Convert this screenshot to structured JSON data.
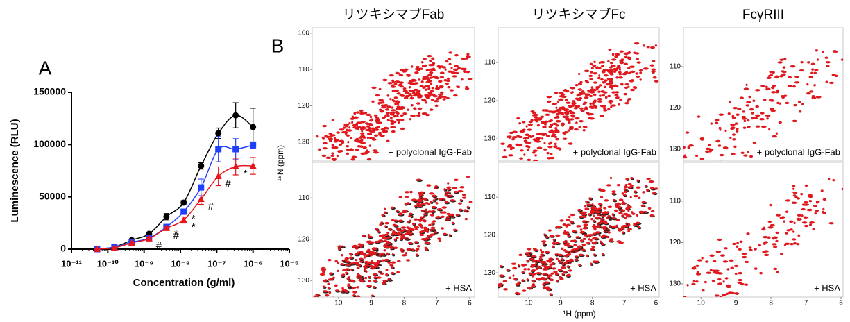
{
  "chart_data": [
    {
      "type": "scatter",
      "panel_label": "A",
      "xlabel": "Concentration (g/ml)",
      "ylabel": "Luminescence (RLU)",
      "xscale": "log",
      "xlim": [
        1e-11,
        1e-05
      ],
      "xticks": [
        {
          "value": 1e-11,
          "label": "10⁻¹¹"
        },
        {
          "value": 1e-10,
          "label": "10⁻¹⁰"
        },
        {
          "value": 1e-09,
          "label": "10⁻⁹"
        },
        {
          "value": 1e-08,
          "label": "10⁻⁸"
        },
        {
          "value": 1e-07,
          "label": "10⁻⁷"
        },
        {
          "value": 1e-06,
          "label": "10⁻⁶"
        },
        {
          "value": 1e-05,
          "label": "10⁻⁵"
        }
      ],
      "ylim": [
        0,
        150000
      ],
      "yticks": [
        0,
        50000,
        100000,
        150000
      ],
      "x": [
        5.08e-11,
        1.52e-10,
        4.57e-10,
        1.37e-09,
        4.12e-09,
        1.23e-08,
        3.7e-08,
        1.11e-07,
        3.33e-07,
        1e-06
      ],
      "series": [
        {
          "color": "#000000",
          "marker": "circle",
          "values": [
            0,
            2000,
            8600,
            14600,
            31000,
            44500,
            79600,
            110800,
            128000,
            116800
          ],
          "errors": [
            0,
            0,
            1000,
            1500,
            3000,
            2000,
            3000,
            5000,
            12000,
            18000
          ],
          "annotations": [
            null,
            null,
            null,
            null,
            null,
            null,
            null,
            null,
            null,
            null
          ]
        },
        {
          "color": "#1f3fff",
          "marker": "square",
          "values": [
            0,
            2000,
            6600,
            10600,
            21200,
            35800,
            59000,
            95600,
            95600,
            99600
          ],
          "errors": [
            0,
            0,
            1000,
            1000,
            2000,
            2000,
            8000,
            12000,
            10000,
            3000
          ],
          "annotations": [
            null,
            null,
            null,
            null,
            "*",
            "*",
            null,
            null,
            null,
            null
          ]
        },
        {
          "color": "#e8151b",
          "marker": "triangle",
          "values": [
            0,
            1300,
            6000,
            10000,
            20000,
            27900,
            47800,
            69700,
            79000,
            79600
          ],
          "errors": [
            0,
            0,
            1000,
            1000,
            2000,
            3000,
            5000,
            9000,
            8000,
            8000
          ],
          "annotations": [
            null,
            null,
            null,
            "#",
            "#",
            "*",
            "#",
            "#",
            "*",
            null
          ]
        }
      ]
    },
    {
      "type": "nmr",
      "panel_label": "B",
      "xlabel": "¹H (ppm)",
      "ylabel": "¹⁵N (ppm)",
      "columns": [
        {
          "title": "リツキシマブFab",
          "panels": [
            {
              "condition": "+ polyclonal IgG-Fab",
              "xlim": [
                10.8,
                5.85
              ],
              "ylim": [
                135.2,
                98.5
              ],
              "yticks": [
                100,
                110,
                120,
                130
              ]
            },
            {
              "condition": "+ HSA",
              "xlim": [
                10.8,
                5.85
              ],
              "ylim": [
                134,
                101.4
              ],
              "yticks": [
                110,
                120,
                130
              ],
              "xticks": [
                10,
                9,
                8,
                7,
                6
              ]
            }
          ]
        },
        {
          "title": "リツキシマブFc",
          "panels": [
            {
              "condition": "+ polyclonal IgG-Fab",
              "xlim": [
                10.96,
                5.9
              ],
              "ylim": [
                135.8,
                100.9
              ],
              "yticks": [
                110,
                120,
                130
              ]
            },
            {
              "condition": "+ HSA",
              "xlim": [
                10.96,
                5.9
              ],
              "ylim": [
                136.4,
                100.8
              ],
              "yticks": [
                110,
                120,
                130
              ],
              "xticks": [
                10,
                9,
                8,
                7,
                6
              ]
            }
          ]
        },
        {
          "title": "FcγRIII",
          "panels": [
            {
              "condition": "+ polyclonal IgG-Fab",
              "xlim": [
                10.5,
                5.94
              ],
              "ylim": [
                132.9,
                100.6
              ],
              "yticks": [
                110,
                120,
                130
              ]
            },
            {
              "condition": "+ HSA",
              "xlim": [
                10.5,
                5.94
              ],
              "ylim": [
                133.2,
                100.6
              ],
              "yticks": [
                110,
                120,
                130
              ],
              "xticks": [
                10,
                9,
                8,
                7,
                6
              ]
            }
          ]
        }
      ]
    }
  ]
}
